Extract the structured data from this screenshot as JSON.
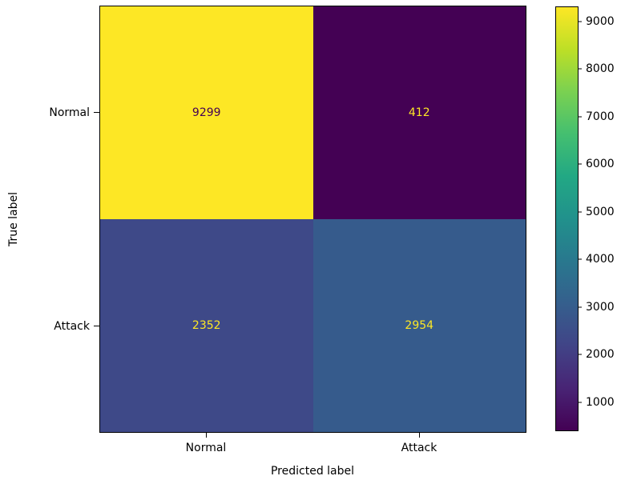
{
  "chart_data": {
    "type": "heatmap",
    "subtype": "confusion_matrix",
    "title": "",
    "xlabel": "Predicted label",
    "ylabel": "True label",
    "x_categories": [
      "Normal",
      "Attack"
    ],
    "y_categories": [
      "Normal",
      "Attack"
    ],
    "matrix": [
      [
        9299,
        412
      ],
      [
        2352,
        2954
      ]
    ],
    "vmin": 412,
    "vmax": 9299,
    "colormap": "viridis",
    "grid": false,
    "legend_position": "colorbar-right",
    "colorbar_ticks": [
      9000,
      8000,
      7000,
      6000,
      5000,
      4000,
      3000,
      2000,
      1000
    ],
    "cell_styles": [
      [
        {
          "bg": "#fde725",
          "fg": "#440154"
        },
        {
          "bg": "#440154",
          "fg": "#fde725"
        }
      ],
      [
        {
          "bg": "#3e4988",
          "fg": "#fde725"
        },
        {
          "bg": "#365b8c",
          "fg": "#fde725"
        }
      ]
    ],
    "colors": {
      "viridis_stops": [
        "#440154",
        "#482475",
        "#414487",
        "#355f8d",
        "#29788e",
        "#21918c",
        "#22a884",
        "#44bf70",
        "#7ad151",
        "#bddf26",
        "#fde725"
      ],
      "axis": "#000000",
      "background": "#ffffff"
    }
  }
}
